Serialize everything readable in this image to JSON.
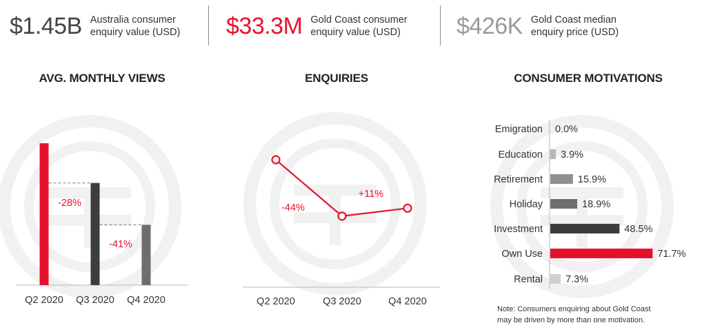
{
  "kpis": [
    {
      "value": "$1.45B",
      "label_line1": "Australia consumer",
      "label_line2": "enquiry value (USD)",
      "color": "#444444"
    },
    {
      "value": "$33.3M",
      "label_line1": "Gold Coast consumer",
      "label_line2": "enquiry value (USD)",
      "color": "#e8112d"
    },
    {
      "value": "$426K",
      "label_line1": "Gold Coast median",
      "label_line2": "enquiry price (USD)",
      "color": "#9a9a9a"
    }
  ],
  "colors": {
    "accent": "#e8112d",
    "dark": "#3d3d3d",
    "mid": "#6e6e6e",
    "light": "#8f8f8f",
    "lighter": "#b5b5b5",
    "lightest": "#d0d0d0",
    "watermark": "#f1f1f1"
  },
  "chart_data": [
    {
      "type": "bar",
      "title": "AVG. MONTHLY VIEWS",
      "categories": [
        "Q2 2020",
        "Q3 2020",
        "Q4 2020"
      ],
      "values": [
        100,
        72,
        42.5
      ],
      "ylim": [
        0,
        100
      ],
      "annotations": [
        "-28%",
        "-41%"
      ],
      "bar_colors": [
        "#e8112d",
        "#3d3d3d",
        "#6e6e6e"
      ],
      "grid": false
    },
    {
      "type": "line",
      "title": "ENQUIRIES",
      "categories": [
        "Q2 2020",
        "Q3 2020",
        "Q4 2020"
      ],
      "values": [
        100,
        56,
        62.2
      ],
      "ylim": [
        0,
        120
      ],
      "annotations": [
        "-44%",
        "+11%"
      ],
      "grid": false
    },
    {
      "type": "bar",
      "orientation": "horizontal",
      "title": "CONSUMER MOTIVATIONS",
      "categories": [
        "Emigration",
        "Education",
        "Retirement",
        "Holiday",
        "Investment",
        "Own Use",
        "Rental"
      ],
      "values": [
        0.0,
        3.9,
        15.9,
        18.9,
        48.5,
        71.7,
        7.3
      ],
      "value_labels": [
        "0.0%",
        "3.9%",
        "15.9%",
        "18.9%",
        "48.5%",
        "71.7%",
        "7.3%"
      ],
      "bar_colors": [
        "#8f8f8f",
        "#b5b5b5",
        "#8f8f8f",
        "#6e6e6e",
        "#3d3d3d",
        "#e8112d",
        "#d0d0d0"
      ],
      "xlim": [
        0,
        72
      ],
      "grid": false
    }
  ],
  "note": {
    "line1": "Note: Consumers enquiring about Gold Coast",
    "line2": "may be driven by more than one motivation."
  }
}
